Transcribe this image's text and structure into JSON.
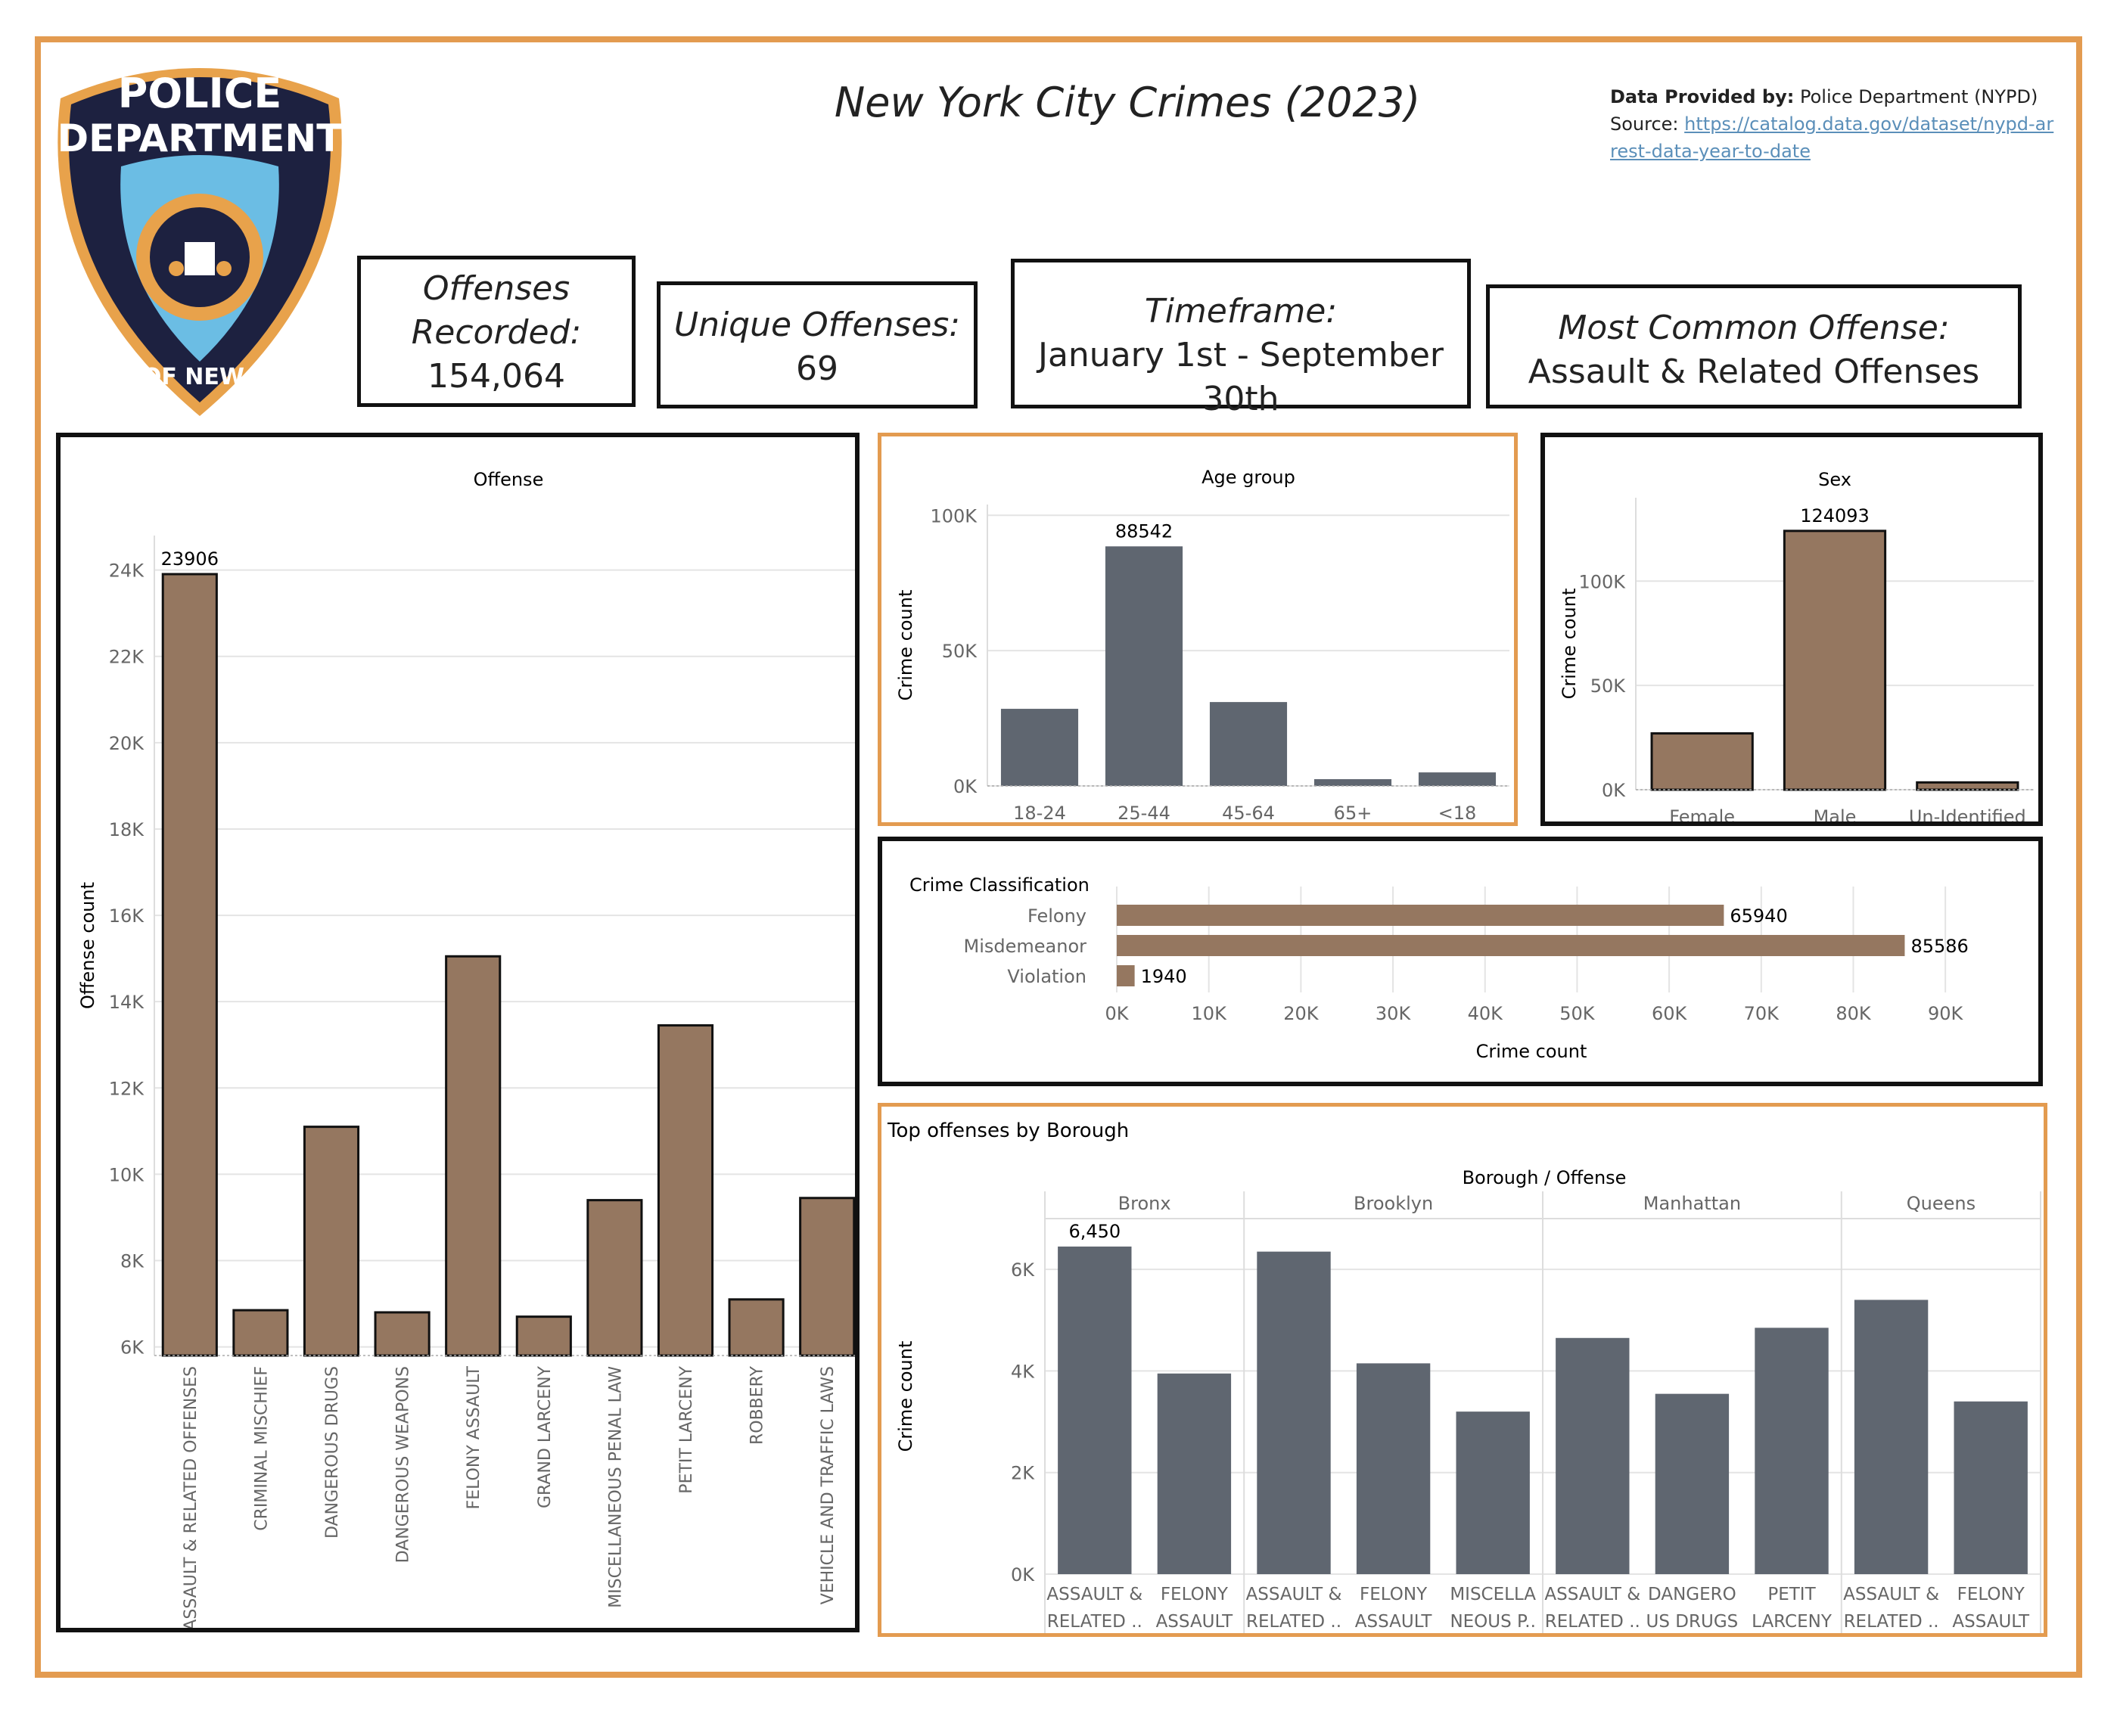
{
  "header": {
    "title": "New York City Crimes (2023)",
    "provided_label": "Data Provided by:",
    "provided_value": "Police Department (NYPD)",
    "source_label": "Source:",
    "source_url": "https://catalog.data.gov/dataset/nypd-arrest-data-year-to-date"
  },
  "logo": {
    "text_top": "POLICE",
    "text_mid": "DEPARTMENT",
    "text_city": "CITY OF NEW YORK"
  },
  "kpis": {
    "offenses_label": "Offenses Recorded:",
    "offenses_value": "154,064",
    "unique_label": "Unique Offenses:",
    "unique_value": "69",
    "timeframe_label": "Timeframe:",
    "timeframe_value": "January 1st - September 30th",
    "common_label": "Most Common Offense:",
    "common_value": "Assault & Related Offenses"
  },
  "colors": {
    "brown": "#957760",
    "slate": "#5f6670",
    "orange_border": "#e39b50",
    "black_border": "#111111"
  },
  "chart_data": [
    {
      "id": "offense",
      "type": "bar",
      "title": "Offense",
      "ylabel": "Offense count",
      "xlabel": "",
      "ylim": [
        5800,
        24800
      ],
      "yticks": [
        6000,
        8000,
        10000,
        12000,
        14000,
        16000,
        18000,
        20000,
        22000,
        24000
      ],
      "ytick_labels": [
        "6K",
        "8K",
        "10K",
        "12K",
        "14K",
        "16K",
        "18K",
        "20K",
        "22K",
        "24K"
      ],
      "categories": [
        "ASSAULT & RELATED OFFENSES",
        "CRIMINAL MISCHIEF",
        "DANGEROUS DRUGS",
        "DANGEROUS WEAPONS",
        "FELONY ASSAULT",
        "GRAND LARCENY",
        "MISCELLANEOUS PENAL LAW",
        "PETIT LARCENY",
        "ROBBERY",
        "VEHICLE AND TRAFFIC LAWS"
      ],
      "values": [
        23906,
        6850,
        11100,
        6800,
        15050,
        6700,
        9400,
        13450,
        7100,
        9450
      ],
      "data_labels": [
        "23906",
        "",
        "",
        "",
        "",
        "",
        "",
        "",
        "",
        ""
      ],
      "color": "#957760",
      "grid": true
    },
    {
      "id": "age",
      "type": "bar",
      "title": "Age group",
      "ylabel": "Crime count",
      "xlabel": "",
      "ylim": [
        0,
        104000
      ],
      "yticks": [
        0,
        50000,
        100000
      ],
      "ytick_labels": [
        "0K",
        "50K",
        "100K"
      ],
      "categories": [
        "18-24",
        "25-44",
        "45-64",
        "65+",
        "<18"
      ],
      "values": [
        28500,
        88542,
        31000,
        2500,
        5000
      ],
      "data_labels": [
        "",
        "88542",
        "",
        "",
        ""
      ],
      "color": "#5f6670",
      "grid": true
    },
    {
      "id": "sex",
      "type": "bar",
      "title": "Sex",
      "ylabel": "Crime count",
      "xlabel": "",
      "ylim": [
        0,
        140000
      ],
      "yticks": [
        0,
        50000,
        100000
      ],
      "ytick_labels": [
        "0K",
        "50K",
        "100K"
      ],
      "categories": [
        "Female",
        "Male",
        "Un-Identified"
      ],
      "values": [
        27000,
        124093,
        3500
      ],
      "data_labels": [
        "",
        "124093",
        ""
      ],
      "color": "#957760",
      "grid": true
    },
    {
      "id": "classification",
      "type": "bar",
      "orientation": "horizontal",
      "title": "Crime Classification",
      "xlabel": "Crime count",
      "ylabel": "",
      "xlim": [
        0,
        95000
      ],
      "xticks": [
        0,
        10000,
        20000,
        30000,
        40000,
        50000,
        60000,
        70000,
        80000,
        90000
      ],
      "xtick_labels": [
        "0K",
        "10K",
        "20K",
        "30K",
        "40K",
        "50K",
        "60K",
        "70K",
        "80K",
        "90K"
      ],
      "categories": [
        "Felony",
        "Misdemeanor",
        "Violation"
      ],
      "values": [
        65940,
        85586,
        1940
      ],
      "data_labels": [
        "65940",
        "85586",
        "1940"
      ],
      "color": "#957760",
      "grid": true
    },
    {
      "id": "borough",
      "type": "bar",
      "title": "Top offenses by Borough",
      "header": "Borough / Offense",
      "ylabel": "Crime count",
      "xlabel": "",
      "ylim": [
        0,
        7000
      ],
      "yticks": [
        0,
        2000,
        4000,
        6000
      ],
      "ytick_labels": [
        "0K",
        "2K",
        "4K",
        "6K"
      ],
      "groups": [
        {
          "name": "Bronx",
          "categories": [
            [
              "ASSAULT &",
              "RELATED .."
            ],
            [
              "FELONY",
              "ASSAULT"
            ]
          ],
          "values": [
            6450,
            3950
          ],
          "data_labels": [
            "6,450",
            ""
          ]
        },
        {
          "name": "Brooklyn",
          "categories": [
            [
              "ASSAULT &",
              "RELATED .."
            ],
            [
              "FELONY",
              "ASSAULT"
            ],
            [
              "MISCELLA",
              "NEOUS P.."
            ]
          ],
          "values": [
            6350,
            4150,
            3200
          ],
          "data_labels": [
            "",
            "",
            ""
          ]
        },
        {
          "name": "Manhattan",
          "categories": [
            [
              "ASSAULT &",
              "RELATED .."
            ],
            [
              "DANGERO",
              "US DRUGS"
            ],
            [
              "PETIT",
              "LARCENY"
            ]
          ],
          "values": [
            4650,
            3550,
            4850
          ],
          "data_labels": [
            "",
            "",
            ""
          ]
        },
        {
          "name": "Queens",
          "categories": [
            [
              "ASSAULT &",
              "RELATED .."
            ],
            [
              "FELONY",
              "ASSAULT"
            ]
          ],
          "values": [
            5400,
            3400
          ],
          "data_labels": [
            "",
            ""
          ]
        }
      ],
      "color": "#5f6670",
      "grid": true
    }
  ]
}
